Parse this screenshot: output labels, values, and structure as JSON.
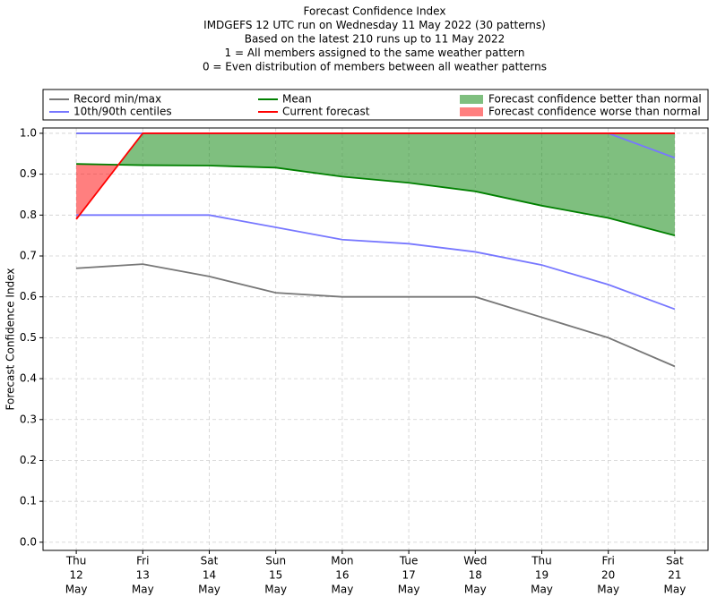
{
  "chart_data": {
    "type": "line",
    "title": [
      "Forecast Confidence Index",
      "IMDGEFS 12 UTC run on Wednesday 11 May 2022 (30 patterns)",
      "Based on the latest 210 runs up to 11 May 2022",
      "1 = All members assigned to the same weather pattern",
      "0 = Even distribution of members between all weather patterns"
    ],
    "y_label": "Forecast Confidence Index",
    "categories": [
      [
        "Thu",
        "12",
        "May"
      ],
      [
        "Fri",
        "13",
        "May"
      ],
      [
        "Sat",
        "14",
        "May"
      ],
      [
        "Sun",
        "15",
        "May"
      ],
      [
        "Mon",
        "16",
        "May"
      ],
      [
        "Tue",
        "17",
        "May"
      ],
      [
        "Wed",
        "18",
        "May"
      ],
      [
        "Thu",
        "19",
        "May"
      ],
      [
        "Fri",
        "20",
        "May"
      ],
      [
        "Sat",
        "21",
        "May"
      ]
    ],
    "series": [
      {
        "name": "Record min/max",
        "color": "#777777",
        "lower": [
          0.67,
          0.68,
          0.65,
          0.61,
          0.6,
          0.6,
          0.6,
          0.55,
          0.5,
          0.43
        ],
        "upper": [
          1,
          1,
          1,
          1,
          1,
          1,
          1,
          1,
          1,
          1
        ]
      },
      {
        "name": "10th/90th centiles",
        "color": "#7777ff",
        "lower": [
          0.8,
          0.8,
          0.8,
          0.77,
          0.74,
          0.73,
          0.71,
          0.678,
          0.63,
          0.57
        ],
        "upper": [
          1,
          1,
          1,
          1,
          1,
          1,
          1,
          1,
          1,
          0.94
        ]
      },
      {
        "name": "Mean",
        "color": "#008000",
        "values": [
          0.925,
          0.922,
          0.921,
          0.916,
          0.894,
          0.879,
          0.858,
          0.823,
          0.793,
          0.75
        ]
      },
      {
        "name": "Current forecast",
        "color": "#ff0000",
        "values": [
          0.79,
          1,
          1,
          1,
          1,
          1,
          1,
          1,
          1,
          1
        ]
      }
    ],
    "fills": [
      {
        "name": "Forecast confidence better than normal",
        "color": "#008000"
      },
      {
        "name": "Forecast confidence worse than normal",
        "color": "#ff0000"
      }
    ],
    "ylim": [
      -0.02,
      1.013
    ],
    "yticks": [
      {
        "value": 0,
        "label": "0.0"
      },
      0.1,
      0.2,
      0.3,
      0.4,
      0.5,
      0.6,
      0.7,
      0.8,
      0.9,
      {
        "value": 1,
        "label": "1.0"
      }
    ],
    "grid": true
  }
}
